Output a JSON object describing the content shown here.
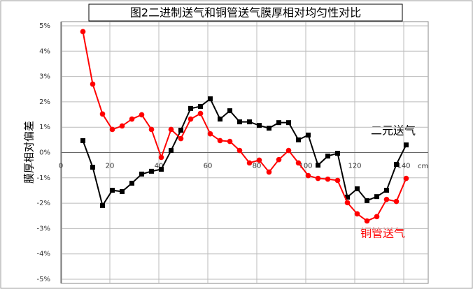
{
  "chart_data": {
    "type": "line",
    "title": "图2二进制送气和铜管送气膜厚相对均匀性对比",
    "y_label": "膜厚相对偏差",
    "x_unit": "cm",
    "x": [
      9,
      13,
      17,
      21,
      25,
      29,
      33,
      37,
      41,
      45,
      49,
      53,
      57,
      61,
      65,
      69,
      73,
      77,
      81,
      85,
      89,
      93,
      97,
      101,
      105,
      109,
      113,
      117,
      121,
      125,
      129,
      133,
      137,
      141
    ],
    "series": [
      {
        "name": "二元送气",
        "color": "#000000",
        "marker": "square",
        "values": [
          0.47,
          -0.58,
          -2.09,
          -1.49,
          -1.54,
          -1.21,
          -0.85,
          -0.74,
          -0.66,
          0.08,
          0.88,
          1.74,
          1.82,
          2.12,
          1.32,
          1.65,
          1.21,
          1.21,
          1.07,
          0.96,
          1.18,
          1.18,
          0.5,
          0.69,
          -0.5,
          -0.14,
          -0.03,
          -1.76,
          -1.43,
          -1.9,
          -1.74,
          -1.49,
          -0.47,
          0.3
        ]
      },
      {
        "name": "铜管送气",
        "color": "#ff0000",
        "marker": "circle",
        "values": [
          4.77,
          2.7,
          1.52,
          0.91,
          1.05,
          1.32,
          1.49,
          0.91,
          -0.19,
          0.91,
          0.55,
          1.32,
          1.54,
          0.74,
          0.47,
          0.44,
          0.08,
          -0.41,
          -0.3,
          -0.77,
          -0.28,
          0.08,
          -0.41,
          -0.91,
          -1.02,
          -1.05,
          -1.1,
          -1.98,
          -2.42,
          -2.7,
          -2.53,
          -1.85,
          -1.93,
          -1.02
        ]
      }
    ],
    "xlim": [
      0,
      150
    ],
    "xticks": [
      0,
      20,
      40,
      60,
      80,
      100,
      120,
      140
    ],
    "ylim": [
      -5,
      5
    ],
    "yticks": [
      {
        "value": 5,
        "label": "5%"
      },
      {
        "value": 4,
        "label": "4%"
      },
      {
        "value": 3,
        "label": "3%"
      },
      {
        "value": 2,
        "label": "2%"
      },
      {
        "value": 1,
        "label": "1%"
      },
      {
        "value": 0,
        "label": "0%"
      },
      {
        "value": -1,
        "label": "-1%"
      },
      {
        "value": -2,
        "label": "-2%"
      },
      {
        "value": -3,
        "label": "-3%"
      },
      {
        "value": -4,
        "label": "-4%"
      },
      {
        "value": -5,
        "label": "-5%"
      }
    ],
    "grid": true
  }
}
